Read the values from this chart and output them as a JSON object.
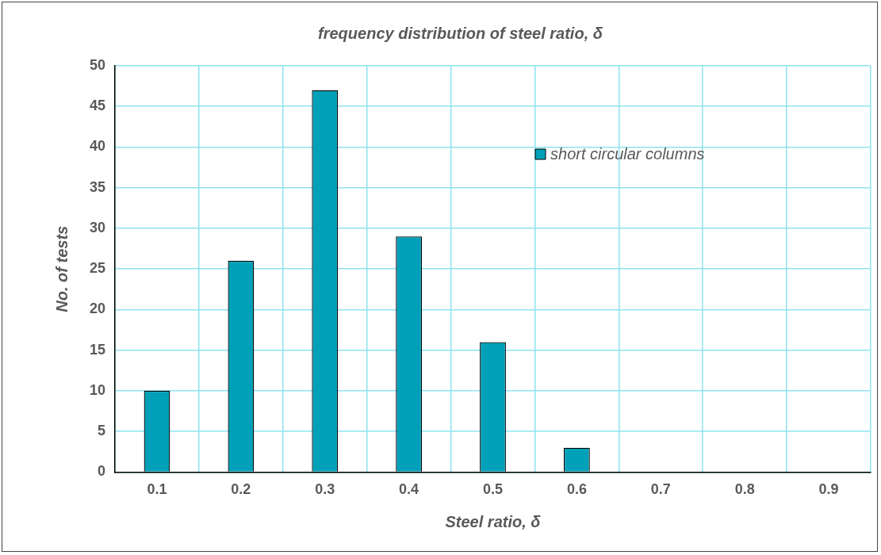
{
  "chart_data": {
    "type": "bar",
    "title": "frequency distribution of steel ratio, δ",
    "xlabel": "Steel ratio, δ",
    "ylabel": "No. of tests",
    "categories": [
      "0.1",
      "0.2",
      "0.3",
      "0.4",
      "0.5",
      "0.6",
      "0.7",
      "0.8",
      "0.9"
    ],
    "series": [
      {
        "name": "short circular columns",
        "color": "#00a0b8",
        "values": [
          10,
          26,
          47,
          29,
          16,
          3,
          0,
          0,
          0
        ]
      }
    ],
    "ylim": [
      0,
      50
    ],
    "yticks": [
      0,
      5,
      10,
      15,
      20,
      25,
      30,
      35,
      40,
      45,
      50
    ],
    "grid": true,
    "legend": "top right"
  }
}
